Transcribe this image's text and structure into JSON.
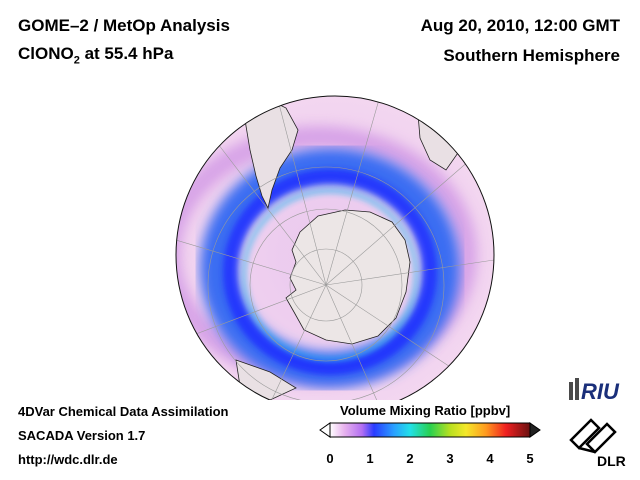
{
  "header": {
    "title": "GOME–2 / MetOp Analysis",
    "species_prefix": "ClONO",
    "species_subscript": "2",
    "species_suffix": " at 55.4 hPa",
    "date": "Aug 20, 2010, 12:00 GMT",
    "hemisphere": "Southern Hemisphere"
  },
  "footer": {
    "line1": "4DVar Chemical Data Assimilation",
    "line2": "SACADA Version 1.7",
    "line3": "http://wdc.dlr.de"
  },
  "colorbar": {
    "title": "Volume Mixing Ratio [ppbv]",
    "ticks": [
      "0",
      "1",
      "2",
      "3",
      "4",
      "5"
    ],
    "min": 0,
    "max": 5
  },
  "logos": {
    "riu": "RIU",
    "dlr": "DLR"
  },
  "colors": {
    "background": "#ffffff",
    "land": "#ece7e7",
    "low_band": "#f0c8ec",
    "mid_band": "#d896e8",
    "high_band": "#2d5cf0",
    "peak_band": "#1818ff"
  }
}
